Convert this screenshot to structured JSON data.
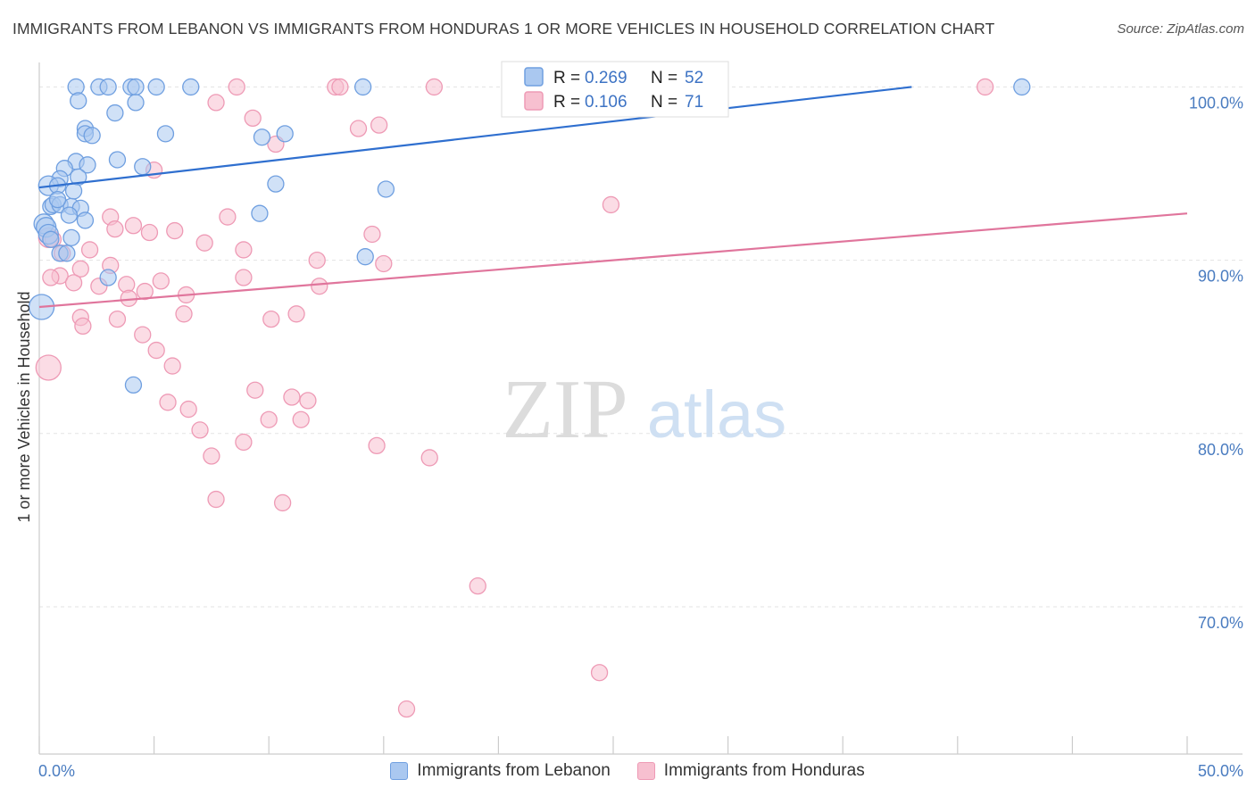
{
  "title": "IMMIGRANTS FROM LEBANON VS IMMIGRANTS FROM HONDURAS 1 OR MORE VEHICLES IN HOUSEHOLD CORRELATION CHART",
  "source": "Source: ZipAtlas.com",
  "watermark": {
    "zip": "ZIP",
    "atlas": "atlas"
  },
  "colors": {
    "lebanon_fill": "#aac8f0",
    "lebanon_stroke": "#6f9fe0",
    "lebanon_line": "#2f6fcf",
    "honduras_fill": "#f7c0d0",
    "honduras_stroke": "#ee9ab5",
    "honduras_line": "#e0759c",
    "tick_label": "#4a7cc0",
    "grid": "#e3e3e3"
  },
  "legend_box": {
    "rows": [
      {
        "r_label": "R =",
        "r_value": "0.269",
        "n_label": "N =",
        "n_value": "52"
      },
      {
        "r_label": "R =",
        "r_value": "0.106",
        "n_label": "N =",
        "n_value": "71"
      }
    ]
  },
  "bottom_legend": {
    "lebanon": "Immigrants from Lebanon",
    "honduras": "Immigrants from Honduras"
  },
  "chart_data": {
    "type": "scatter",
    "title": "IMMIGRANTS FROM LEBANON VS IMMIGRANTS FROM HONDURAS 1 OR MORE VEHICLES IN HOUSEHOLD CORRELATION CHART",
    "xlabel": "",
    "ylabel": "1 or more Vehicles in Household",
    "xlim": [
      0,
      50
    ],
    "ylim": [
      61.5,
      101
    ],
    "x_tick_labels": [
      "0.0%",
      "50.0%"
    ],
    "y_ticks": [
      70,
      80,
      90,
      100
    ],
    "y_tick_labels": [
      "70.0%",
      "80.0%",
      "90.0%",
      "100.0%"
    ],
    "grid": "horizontal dashed",
    "legend_position": "top-center",
    "series": [
      {
        "name": "Immigrants from Lebanon",
        "R": 0.269,
        "N": 52,
        "trend": {
          "x": [
            0,
            38
          ],
          "y": [
            94.2,
            100.0
          ]
        },
        "points": [
          [
            1.6,
            100
          ],
          [
            2.6,
            100
          ],
          [
            3,
            100
          ],
          [
            4,
            100
          ],
          [
            4.2,
            100
          ],
          [
            5.1,
            100
          ],
          [
            6.6,
            100
          ],
          [
            14.1,
            100
          ],
          [
            42.8,
            100
          ],
          [
            1.7,
            99.2
          ],
          [
            4.2,
            99.1
          ],
          [
            3.3,
            98.5
          ],
          [
            2,
            97.6
          ],
          [
            2,
            97.3
          ],
          [
            2.3,
            97.2
          ],
          [
            5.5,
            97.3
          ],
          [
            9.7,
            97.1
          ],
          [
            10.7,
            97.3
          ],
          [
            1.6,
            95.7
          ],
          [
            2.1,
            95.5
          ],
          [
            3.4,
            95.8
          ],
          [
            4.5,
            95.4
          ],
          [
            1.1,
            95.3
          ],
          [
            0.9,
            94.7
          ],
          [
            1.7,
            94.8
          ],
          [
            0.4,
            94.3
          ],
          [
            0.8,
            94.3
          ],
          [
            10.3,
            94.4
          ],
          [
            15.1,
            94.1
          ],
          [
            0.5,
            93.1
          ],
          [
            0.6,
            93.2
          ],
          [
            0.9,
            93.2
          ],
          [
            1.4,
            93.1
          ],
          [
            0.8,
            93.5
          ],
          [
            1.5,
            94
          ],
          [
            1.8,
            93
          ],
          [
            1.3,
            92.6
          ],
          [
            2,
            92.3
          ],
          [
            9.6,
            92.7
          ],
          [
            0.2,
            92.1
          ],
          [
            0.3,
            91.9
          ],
          [
            0.4,
            91.5
          ],
          [
            0.5,
            91.2
          ],
          [
            1.4,
            91.3
          ],
          [
            0.9,
            90.4
          ],
          [
            1.2,
            90.4
          ],
          [
            14.2,
            90.2
          ],
          [
            3,
            89
          ],
          [
            0.1,
            87.3
          ],
          [
            4.1,
            82.8
          ]
        ]
      },
      {
        "name": "Immigrants from Honduras",
        "R": 0.106,
        "N": 71,
        "trend": {
          "x": [
            0,
            50
          ],
          "y": [
            87.3,
            92.7
          ]
        },
        "points": [
          [
            8.6,
            100
          ],
          [
            12.9,
            100
          ],
          [
            13.1,
            100
          ],
          [
            17.2,
            100
          ],
          [
            23.5,
            100
          ],
          [
            28,
            100
          ],
          [
            41.2,
            100
          ],
          [
            7.7,
            99.1
          ],
          [
            9.3,
            98.2
          ],
          [
            13.9,
            97.6
          ],
          [
            14.8,
            97.8
          ],
          [
            10.3,
            96.7
          ],
          [
            5,
            95.2
          ],
          [
            24.9,
            93.2
          ],
          [
            3.1,
            92.5
          ],
          [
            8.2,
            92.5
          ],
          [
            3.3,
            91.8
          ],
          [
            4.1,
            92
          ],
          [
            4.8,
            91.6
          ],
          [
            5.9,
            91.7
          ],
          [
            14.5,
            91.5
          ],
          [
            0.4,
            91.3
          ],
          [
            0.6,
            91.2
          ],
          [
            7.2,
            91
          ],
          [
            2.2,
            90.6
          ],
          [
            8.9,
            90.6
          ],
          [
            1,
            90.4
          ],
          [
            12.1,
            90
          ],
          [
            15,
            89.8
          ],
          [
            1.8,
            89.5
          ],
          [
            3.1,
            89.7
          ],
          [
            0.9,
            89.1
          ],
          [
            0.5,
            89
          ],
          [
            5.3,
            88.8
          ],
          [
            8.9,
            89
          ],
          [
            1.5,
            88.7
          ],
          [
            3.8,
            88.6
          ],
          [
            4.6,
            88.2
          ],
          [
            12.2,
            88.5
          ],
          [
            2.6,
            88.5
          ],
          [
            6.4,
            88
          ],
          [
            3.9,
            87.8
          ],
          [
            6.3,
            86.9
          ],
          [
            11.2,
            86.9
          ],
          [
            1.8,
            86.7
          ],
          [
            10.1,
            86.6
          ],
          [
            3.4,
            86.6
          ],
          [
            1.9,
            86.2
          ],
          [
            4.5,
            85.7
          ],
          [
            5.1,
            84.8
          ],
          [
            0.4,
            83.8
          ],
          [
            5.8,
            83.9
          ],
          [
            9.4,
            82.5
          ],
          [
            11,
            82.1
          ],
          [
            11.7,
            81.9
          ],
          [
            5.6,
            81.8
          ],
          [
            6.5,
            81.4
          ],
          [
            10,
            80.8
          ],
          [
            11.4,
            80.8
          ],
          [
            7,
            80.2
          ],
          [
            8.9,
            79.5
          ],
          [
            14.7,
            79.3
          ],
          [
            7.5,
            78.7
          ],
          [
            17,
            78.6
          ],
          [
            7.7,
            76.2
          ],
          [
            10.6,
            76
          ],
          [
            19.1,
            71.2
          ],
          [
            24.4,
            66.2
          ],
          [
            16,
            64.1
          ]
        ]
      }
    ]
  }
}
